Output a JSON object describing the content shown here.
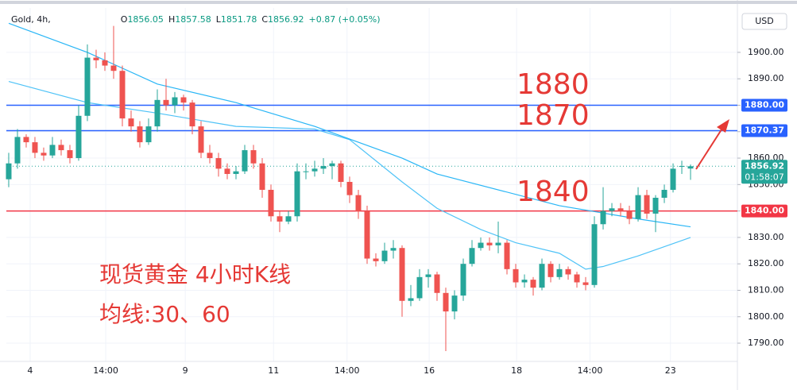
{
  "chart_data": {
    "type": "candlestick",
    "symbol": "Gold, 4h,",
    "ohlc_header": [
      {
        "label": "O",
        "value": "1856.05"
      },
      {
        "label": "H",
        "value": "1857.58"
      },
      {
        "label": "L",
        "value": "1851.78"
      },
      {
        "label": "C",
        "value": "1856.92"
      }
    ],
    "change": "+0.87 (+0.05%)",
    "currency": "USD",
    "up_color": "#26a69a",
    "down_color": "#ef5350",
    "candles": [
      [
        1852,
        1862,
        1849,
        1858
      ],
      [
        1858,
        1871,
        1856,
        1868
      ],
      [
        1868,
        1869,
        1864,
        1866
      ],
      [
        1866,
        1868,
        1860,
        1862
      ],
      [
        1862,
        1864,
        1859,
        1861
      ],
      [
        1861,
        1868,
        1860,
        1865
      ],
      [
        1865,
        1867,
        1861,
        1863
      ],
      [
        1863,
        1865,
        1858,
        1860
      ],
      [
        1860,
        1880,
        1859,
        1876
      ],
      [
        1876,
        1903,
        1874,
        1898
      ],
      [
        1898,
        1901,
        1894,
        1897
      ],
      [
        1897,
        1900,
        1893,
        1895
      ],
      [
        1895,
        1910,
        1890,
        1893
      ],
      [
        1893,
        1895,
        1872,
        1875
      ],
      [
        1875,
        1878,
        1870,
        1872
      ],
      [
        1872,
        1874,
        1864,
        1866
      ],
      [
        1866,
        1875,
        1865,
        1872
      ],
      [
        1872,
        1886,
        1870,
        1882
      ],
      [
        1882,
        1890,
        1878,
        1880
      ],
      [
        1880,
        1885,
        1877,
        1883
      ],
      [
        1883,
        1884,
        1878,
        1881
      ],
      [
        1881,
        1882,
        1869,
        1872
      ],
      [
        1872,
        1874,
        1860,
        1862
      ],
      [
        1862,
        1865,
        1858,
        1860
      ],
      [
        1860,
        1862,
        1853,
        1856
      ],
      [
        1856,
        1858,
        1852,
        1854
      ],
      [
        1854,
        1857,
        1852,
        1855
      ],
      [
        1855,
        1865,
        1854,
        1863
      ],
      [
        1863,
        1865,
        1856,
        1858
      ],
      [
        1858,
        1860,
        1845,
        1848
      ],
      [
        1848,
        1850,
        1836,
        1838
      ],
      [
        1838,
        1840,
        1832,
        1836
      ],
      [
        1836,
        1840,
        1835,
        1838
      ],
      [
        1838,
        1858,
        1836,
        1855
      ],
      [
        1855,
        1858,
        1852,
        1855
      ],
      [
        1855,
        1859,
        1853,
        1856
      ],
      [
        1856,
        1860,
        1854,
        1857
      ],
      [
        1857,
        1859,
        1852,
        1858
      ],
      [
        1858,
        1859,
        1849,
        1851
      ],
      [
        1851,
        1853,
        1843,
        1846
      ],
      [
        1846,
        1848,
        1837,
        1840
      ],
      [
        1840,
        1842,
        1820,
        1822
      ],
      [
        1822,
        1824,
        1819,
        1821
      ],
      [
        1821,
        1828,
        1820,
        1825
      ],
      [
        1825,
        1829,
        1822,
        1826
      ],
      [
        1826,
        1827,
        1800,
        1806
      ],
      [
        1806,
        1812,
        1804,
        1807
      ],
      [
        1807,
        1818,
        1806,
        1815
      ],
      [
        1815,
        1818,
        1811,
        1816
      ],
      [
        1816,
        1817,
        1806,
        1809
      ],
      [
        1809,
        1811,
        1787,
        1802
      ],
      [
        1802,
        1810,
        1799,
        1808
      ],
      [
        1808,
        1822,
        1806,
        1820
      ],
      [
        1820,
        1829,
        1819,
        1826
      ],
      [
        1826,
        1830,
        1825,
        1828
      ],
      [
        1828,
        1830,
        1825,
        1827
      ],
      [
        1827,
        1836,
        1824,
        1828
      ],
      [
        1828,
        1829,
        1816,
        1818
      ],
      [
        1818,
        1820,
        1811,
        1813
      ],
      [
        1813,
        1816,
        1811,
        1814
      ],
      [
        1814,
        1815,
        1808,
        1811
      ],
      [
        1811,
        1822,
        1810,
        1820
      ],
      [
        1820,
        1821,
        1813,
        1815
      ],
      [
        1815,
        1820,
        1814,
        1818
      ],
      [
        1818,
        1819,
        1814,
        1816
      ],
      [
        1816,
        1817,
        1811,
        1813
      ],
      [
        1813,
        1815,
        1810,
        1812
      ],
      [
        1812,
        1838,
        1811,
        1835
      ],
      [
        1835,
        1849,
        1833,
        1840
      ],
      [
        1840,
        1843,
        1838,
        1841
      ],
      [
        1841,
        1843,
        1838,
        1840
      ],
      [
        1840,
        1842,
        1835,
        1837
      ],
      [
        1837,
        1849,
        1836,
        1846
      ],
      [
        1846,
        1848,
        1837,
        1839
      ],
      [
        1839,
        1846,
        1832,
        1845
      ],
      [
        1845,
        1850,
        1843,
        1848
      ],
      [
        1848,
        1858,
        1847,
        1856
      ],
      [
        1857,
        1859,
        1854,
        1857
      ],
      [
        1856.05,
        1857.58,
        1851.78,
        1856.92
      ]
    ],
    "moving_averages": [
      {
        "color": "#4fc3f7",
        "x": [
          0,
          9,
          17,
          26,
          35,
          39,
          45,
          49,
          54,
          58,
          63,
          66,
          68,
          72,
          78
        ],
        "values": [
          1889,
          1881,
          1877,
          1872,
          1871,
          1867,
          1851,
          1841,
          1833,
          1828,
          1824,
          1818,
          1819,
          1823,
          1830
        ]
      },
      {
        "color": "#29b6f6",
        "x": [
          0,
          9,
          17,
          26,
          35,
          45,
          49,
          63,
          72,
          78
        ],
        "values": [
          1911,
          1900,
          1888,
          1881,
          1872,
          1860,
          1854,
          1842,
          1837,
          1834
        ]
      }
    ],
    "xlim": [
      -0.27,
      83.36
    ],
    "ylim": [
      1783.1,
      1916.8
    ],
    "xticks": [
      {
        "value": 2.45,
        "label": "4"
      },
      {
        "value": 11.1,
        "label": "14:00"
      },
      {
        "value": 20.2,
        "label": "9"
      },
      {
        "value": 30.3,
        "label": "11"
      },
      {
        "value": 38.7,
        "label": "14:00"
      },
      {
        "value": 48.1,
        "label": "16"
      },
      {
        "value": 58.1,
        "label": "18"
      },
      {
        "value": 66.5,
        "label": "14:00"
      },
      {
        "value": 75.7,
        "label": "23"
      }
    ],
    "yticks": [
      {
        "value": 1790,
        "label": "1790.00"
      },
      {
        "value": 1800,
        "label": "1800.00"
      },
      {
        "value": 1810,
        "label": "1810.00"
      },
      {
        "value": 1820,
        "label": "1820.00"
      },
      {
        "value": 1830,
        "label": "1830.00"
      },
      {
        "value": 1840,
        "label": "1840.00"
      },
      {
        "value": 1850,
        "label": "1850.00"
      },
      {
        "value": 1860,
        "label": "1860.00"
      },
      {
        "value": 1870,
        "label": "1870.00"
      },
      {
        "value": 1880,
        "label": "1880.00"
      },
      {
        "value": 1890,
        "label": "1890.00"
      },
      {
        "value": 1900,
        "label": "1900.00"
      }
    ],
    "grid": true,
    "price_lines": [
      {
        "value": 1880,
        "label": "1880.00",
        "color": "#2962ff"
      },
      {
        "value": 1870.37,
        "label": "1870.37",
        "color": "#2962ff"
      },
      {
        "value": 1840,
        "label": "1840.00",
        "color": "#f23645"
      }
    ],
    "last_price": {
      "value": 1856.92,
      "label": "1856.92",
      "countdown": "01:58:07",
      "color": "#26a69a"
    },
    "annotations": [
      "1880",
      "1870",
      "1840",
      "现货黄金 4小时K线",
      "均线:30、60"
    ],
    "annotation_color": "#e53935"
  }
}
